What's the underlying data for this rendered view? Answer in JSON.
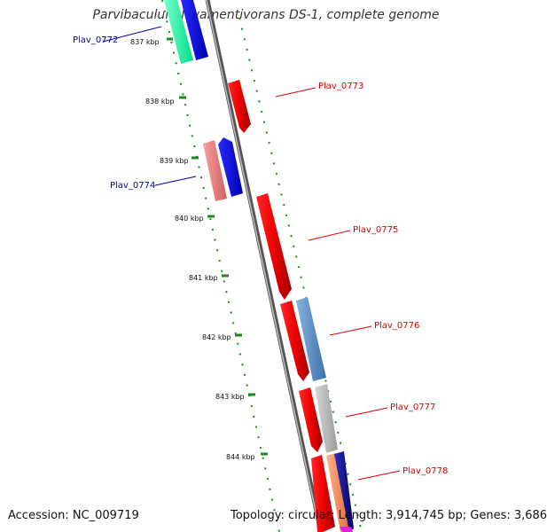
{
  "title": "Parvibaculum lavamentivorans DS-1, complete genome",
  "footer": {
    "accession": "Accession: NC_009719",
    "summary": "Topology: circular; Length: 3,914,745 bp; Genes: 3,686"
  },
  "ticks": [
    "837 kbp",
    "838 kbp",
    "839 kbp",
    "840 kbp",
    "841 kbp",
    "842 kbp",
    "843 kbp",
    "844 kbp"
  ],
  "genes": [
    {
      "label": "Plav_0772",
      "color": "#0000aa"
    },
    {
      "label": "Plav_0773",
      "color": "#dd0000"
    },
    {
      "label": "Plav_0774",
      "color": "#0000aa"
    },
    {
      "label": "Plav_0775",
      "color": "#dd0000"
    },
    {
      "label": "Plav_0776",
      "color": "#dd0000"
    },
    {
      "label": "Plav_0777",
      "color": "#dd0000"
    },
    {
      "label": "Plav_0778",
      "color": "#dd0000"
    }
  ]
}
